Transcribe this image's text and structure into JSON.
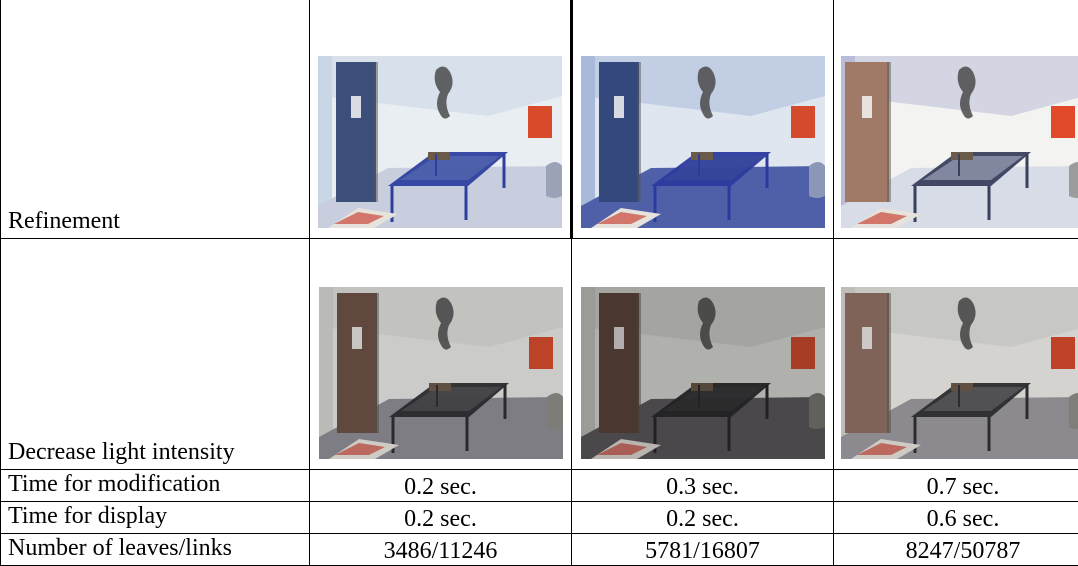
{
  "rows": {
    "refinement": {
      "label": "Refinement"
    },
    "decrease_light": {
      "label": "Decrease light intensity"
    },
    "time_modification": {
      "label": "Time for modification",
      "values": [
        "0.2 sec.",
        "0.3 sec.",
        "0.7 sec."
      ]
    },
    "time_display": {
      "label": "Time for display",
      "values": [
        "0.2 sec.",
        "0.2 sec.",
        "0.6 sec."
      ]
    },
    "leaves_links": {
      "label": "Number of leaves/links",
      "values": [
        "3486/11246",
        "5781/16807",
        "8247/50787"
      ]
    }
  },
  "images": {
    "refinement": [
      "rendered-room-bluish",
      "rendered-room-blue",
      "rendered-room-light"
    ],
    "decrease_light": [
      "rendered-room-dim",
      "rendered-room-dimmer",
      "rendered-room-dim-detailed"
    ]
  },
  "colors": {
    "border": "#000000",
    "text": "#000000"
  }
}
